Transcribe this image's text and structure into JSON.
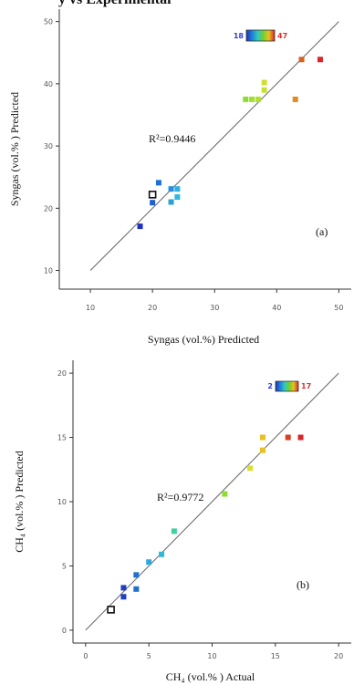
{
  "header_fragment": "y vs Experimental",
  "chart_data": [
    {
      "type": "scatter",
      "panel_label": "(a)",
      "annotation": "R²=0.9446",
      "xlabel": "Syngas (vol.%) Predicted",
      "ylabel": "Syngas  (vol.% ) Predicted",
      "xlim": [
        5,
        52
      ],
      "ylim": [
        7,
        52
      ],
      "xticks": [
        "10",
        "20",
        "30",
        "40",
        "50"
      ],
      "yticks": [
        "10",
        "20",
        "30",
        "40",
        "50"
      ],
      "colorbar": {
        "min_label": "18",
        "max_label": "47",
        "min_color": "#2e3fcf",
        "max_color": "#d9302b"
      },
      "fit_line": {
        "x": [
          10,
          50
        ],
        "y": [
          10,
          50
        ]
      },
      "points": [
        {
          "x": 18,
          "y": 17.1,
          "color": "#1f2fbf"
        },
        {
          "x": 20,
          "y": 20.9,
          "color": "#1f5fd0"
        },
        {
          "x": 20,
          "y": 22.2,
          "color": "#ffffff",
          "outline": true
        },
        {
          "x": 21,
          "y": 24.1,
          "color": "#1f6fd8"
        },
        {
          "x": 23,
          "y": 21,
          "color": "#2aa0d8"
        },
        {
          "x": 23,
          "y": 23.1,
          "color": "#2a8fd8"
        },
        {
          "x": 24,
          "y": 23.1,
          "color": "#30b0e0"
        },
        {
          "x": 24,
          "y": 21.8,
          "color": "#30b8e0"
        },
        {
          "x": 35,
          "y": 37.5,
          "color": "#8fdc30"
        },
        {
          "x": 36,
          "y": 37.5,
          "color": "#9fe030"
        },
        {
          "x": 37,
          "y": 37.5,
          "color": "#b0e030"
        },
        {
          "x": 38,
          "y": 39,
          "color": "#c8e030"
        },
        {
          "x": 38,
          "y": 40.2,
          "color": "#d0e030"
        },
        {
          "x": 43,
          "y": 37.5,
          "color": "#e08a20"
        },
        {
          "x": 44,
          "y": 43.9,
          "color": "#d9601f"
        },
        {
          "x": 47,
          "y": 43.9,
          "color": "#d9252b"
        }
      ]
    },
    {
      "type": "scatter",
      "panel_label": "(b)",
      "annotation": "R²=0.9772",
      "xlabel": "CH₄  (vol.% ) Actual",
      "ylabel": "CH₄  (vol.% ) Predicted",
      "xlim": [
        -1,
        21
      ],
      "ylim": [
        -1,
        21
      ],
      "xticks": [
        "0",
        "5",
        "10",
        "15",
        "20"
      ],
      "yticks": [
        "0",
        "5",
        "10",
        "15",
        "20"
      ],
      "colorbar": {
        "min_label": "2",
        "max_label": "17",
        "min_color": "#2e3fcf",
        "max_color": "#d9302b"
      },
      "fit_line": {
        "x": [
          0,
          20
        ],
        "y": [
          0,
          20
        ]
      },
      "points": [
        {
          "x": 2,
          "y": 1.6,
          "color": "#ffffff",
          "outline": true
        },
        {
          "x": 3,
          "y": 2.6,
          "color": "#1f3fc0"
        },
        {
          "x": 3,
          "y": 3.3,
          "color": "#1f3fc0"
        },
        {
          "x": 4,
          "y": 3.2,
          "color": "#2070d0"
        },
        {
          "x": 4,
          "y": 4.3,
          "color": "#2070d0"
        },
        {
          "x": 5,
          "y": 5.3,
          "color": "#30a8e0"
        },
        {
          "x": 6,
          "y": 5.9,
          "color": "#30b8d8"
        },
        {
          "x": 7,
          "y": 7.7,
          "color": "#40d0a0"
        },
        {
          "x": 11,
          "y": 10.6,
          "color": "#8fdc30"
        },
        {
          "x": 13,
          "y": 12.6,
          "color": "#d8e030"
        },
        {
          "x": 14,
          "y": 14,
          "color": "#e8c020"
        },
        {
          "x": 14,
          "y": 15,
          "color": "#e8c020"
        },
        {
          "x": 16,
          "y": 15,
          "color": "#d94020"
        },
        {
          "x": 17,
          "y": 15,
          "color": "#d9252b"
        }
      ]
    }
  ]
}
